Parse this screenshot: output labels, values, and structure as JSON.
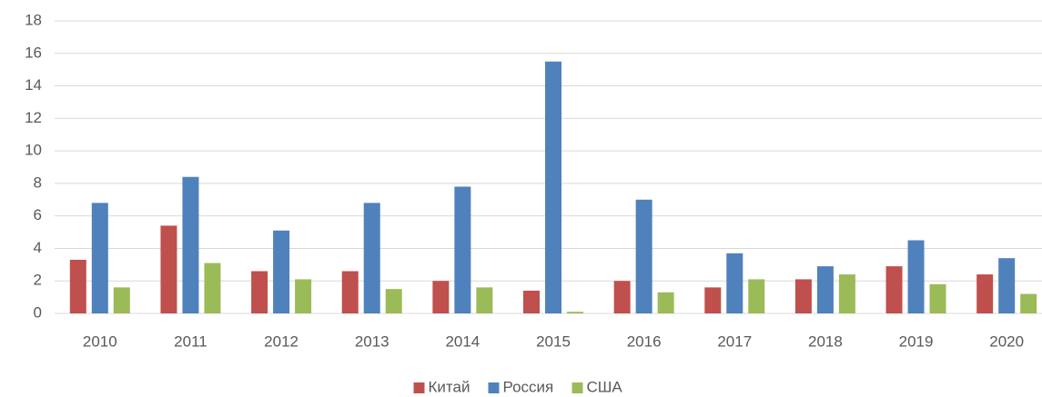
{
  "chart_data": {
    "type": "bar",
    "categories": [
      "2010",
      "2011",
      "2012",
      "2013",
      "2014",
      "2015",
      "2016",
      "2017",
      "2018",
      "2019",
      "2020"
    ],
    "series": [
      {
        "name": "Китай",
        "color": "#c0504d",
        "values": [
          3.3,
          5.4,
          2.6,
          2.6,
          2.0,
          1.4,
          2.0,
          1.6,
          2.1,
          2.9,
          2.4
        ]
      },
      {
        "name": "Россия",
        "color": "#4f81bd",
        "values": [
          6.8,
          8.4,
          5.1,
          6.8,
          7.8,
          15.5,
          7.0,
          3.7,
          2.9,
          4.5,
          3.4
        ]
      },
      {
        "name": "США",
        "color": "#9bbb59",
        "values": [
          1.6,
          3.1,
          2.1,
          1.5,
          1.6,
          0.1,
          1.3,
          2.1,
          2.4,
          1.8,
          1.2
        ]
      }
    ],
    "ylim": [
      0,
      18
    ],
    "yticks": [
      0,
      2,
      4,
      6,
      8,
      10,
      12,
      14,
      16,
      18
    ],
    "grid": true,
    "legend": "bottom"
  }
}
